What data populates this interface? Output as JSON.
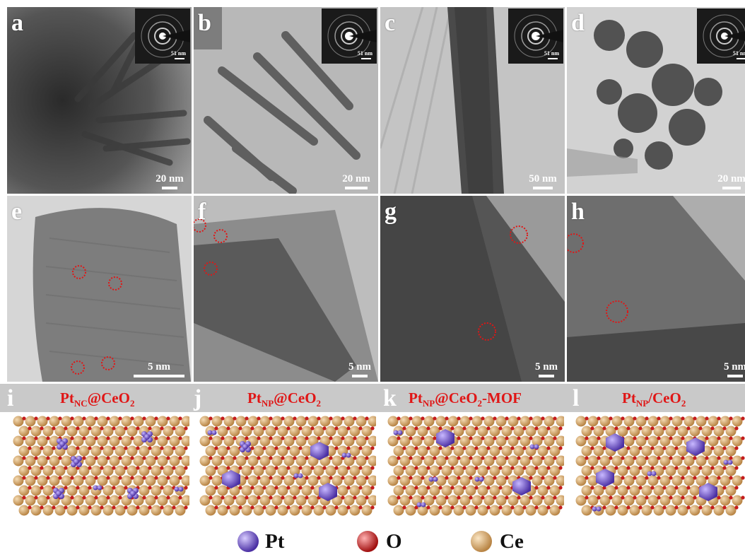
{
  "panels_top": [
    {
      "letter": "a",
      "scale": "20 nm",
      "inset_scale": "51 nm"
    },
    {
      "letter": "b",
      "scale": "20 nm",
      "inset_scale": "51 nm"
    },
    {
      "letter": "c",
      "scale": "50 nm",
      "inset_scale": "51 nm"
    },
    {
      "letter": "d",
      "scale": "20 nm",
      "inset_scale": "51 nm"
    }
  ],
  "panels_mid": [
    {
      "letter": "e",
      "scale": "5 nm"
    },
    {
      "letter": "f",
      "scale": "5 nm"
    },
    {
      "letter": "g",
      "scale": "5 nm"
    },
    {
      "letter": "h",
      "scale": "5 nm"
    }
  ],
  "models": [
    {
      "letter": "i",
      "title_main": "Pt",
      "title_sub": "NC",
      "title_rest": "@CeO",
      "title_sub2": "2",
      "title_tail": ""
    },
    {
      "letter": "j",
      "title_main": "Pt",
      "title_sub": "NP",
      "title_rest": "@CeO",
      "title_sub2": "2",
      "title_tail": ""
    },
    {
      "letter": "k",
      "title_main": "Pt",
      "title_sub": "NP",
      "title_rest": "@CeO",
      "title_sub2": "2",
      "title_tail": "-MOF"
    },
    {
      "letter": "l",
      "title_main": "Pt",
      "title_sub": "NP",
      "title_rest": "/CeO",
      "title_sub2": "2",
      "title_tail": ""
    }
  ],
  "legend": [
    {
      "label": "Pt",
      "color": "#6b4fc4"
    },
    {
      "label": "O",
      "color": "#c41c1c"
    },
    {
      "label": "Ce",
      "color": "#d9a76a"
    }
  ],
  "colors": {
    "highlight_circle": "#e01616",
    "strip_bg": "#c9c9c9",
    "title_red": "#e01616"
  }
}
